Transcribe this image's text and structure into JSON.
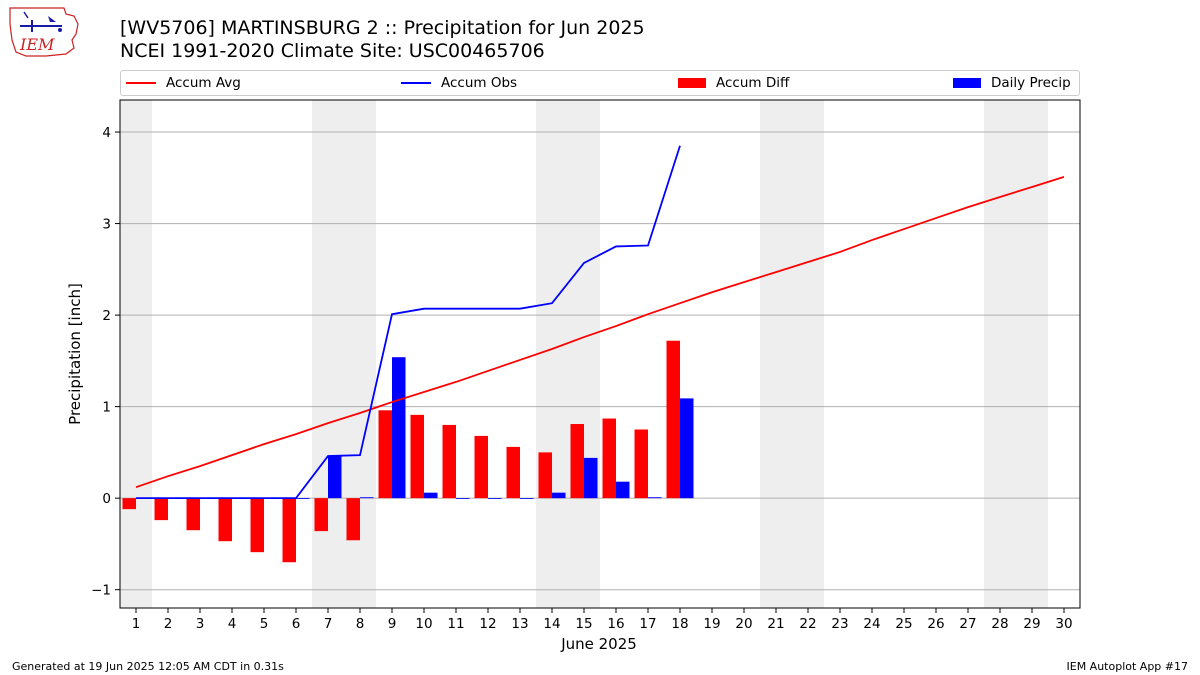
{
  "header": {
    "logo_text": "IEM",
    "title_line1": "[WV5706] MARTINSBURG 2 :: Precipitation for Jun 2025",
    "title_line2": "NCEI 1991-2020 Climate Site: USC00465706"
  },
  "legend": {
    "accum_avg": "Accum Avg",
    "accum_obs": "Accum Obs",
    "accum_diff": "Accum Diff",
    "daily_precip": "Daily Precip"
  },
  "colors": {
    "avg": "#ff0000",
    "obs": "#0000ff",
    "diff": "#ff0000",
    "daily": "#0000ff",
    "weekend": "#eeeeee",
    "grid": "#b0b0b0"
  },
  "chart_data": {
    "type": "bar",
    "xlabel": "June 2025",
    "ylabel": "Precipitation [inch]",
    "ylim": [
      -1.2,
      4.35
    ],
    "yticks": [
      -1,
      0,
      1,
      2,
      3,
      4
    ],
    "grid": true,
    "legend_position": "top",
    "days": [
      1,
      2,
      3,
      4,
      5,
      6,
      7,
      8,
      9,
      10,
      11,
      12,
      13,
      14,
      15,
      16,
      17,
      18,
      19,
      20,
      21,
      22,
      23,
      24,
      25,
      26,
      27,
      28,
      29,
      30
    ],
    "weekend_days": [
      1,
      7,
      8,
      14,
      15,
      21,
      22,
      28,
      29
    ],
    "series": [
      {
        "name": "Accum Avg",
        "kind": "line",
        "values": [
          0.12,
          0.24,
          0.35,
          0.47,
          0.59,
          0.7,
          0.82,
          0.93,
          1.05,
          1.16,
          1.27,
          1.39,
          1.51,
          1.63,
          1.76,
          1.88,
          2.01,
          2.13,
          2.25,
          2.36,
          2.47,
          2.58,
          2.69,
          2.82,
          2.94,
          3.06,
          3.18,
          3.29,
          3.4,
          3.51
        ]
      },
      {
        "name": "Accum Obs",
        "kind": "line",
        "values": [
          0.0,
          0.0,
          0.0,
          0.0,
          0.0,
          0.0,
          0.46,
          0.47,
          2.01,
          2.07,
          2.07,
          2.07,
          2.07,
          2.13,
          2.57,
          2.75,
          2.76,
          3.85
        ]
      },
      {
        "name": "Accum Diff",
        "kind": "bar",
        "values": [
          -0.12,
          -0.24,
          -0.35,
          -0.47,
          -0.59,
          -0.7,
          -0.36,
          -0.46,
          0.96,
          0.91,
          0.8,
          0.68,
          0.56,
          0.5,
          0.81,
          0.87,
          0.75,
          1.72
        ]
      },
      {
        "name": "Daily Precip",
        "kind": "bar",
        "values": [
          0.0,
          0.0,
          0.0,
          0.0,
          0.0,
          0.0,
          0.46,
          0.01,
          1.54,
          0.06,
          0.0,
          0.0,
          0.0,
          0.06,
          0.44,
          0.18,
          0.01,
          1.09
        ]
      }
    ]
  },
  "footer": {
    "generated": "Generated at 19 Jun 2025 12:05 AM CDT in 0.31s",
    "app": "IEM Autoplot App #17"
  }
}
